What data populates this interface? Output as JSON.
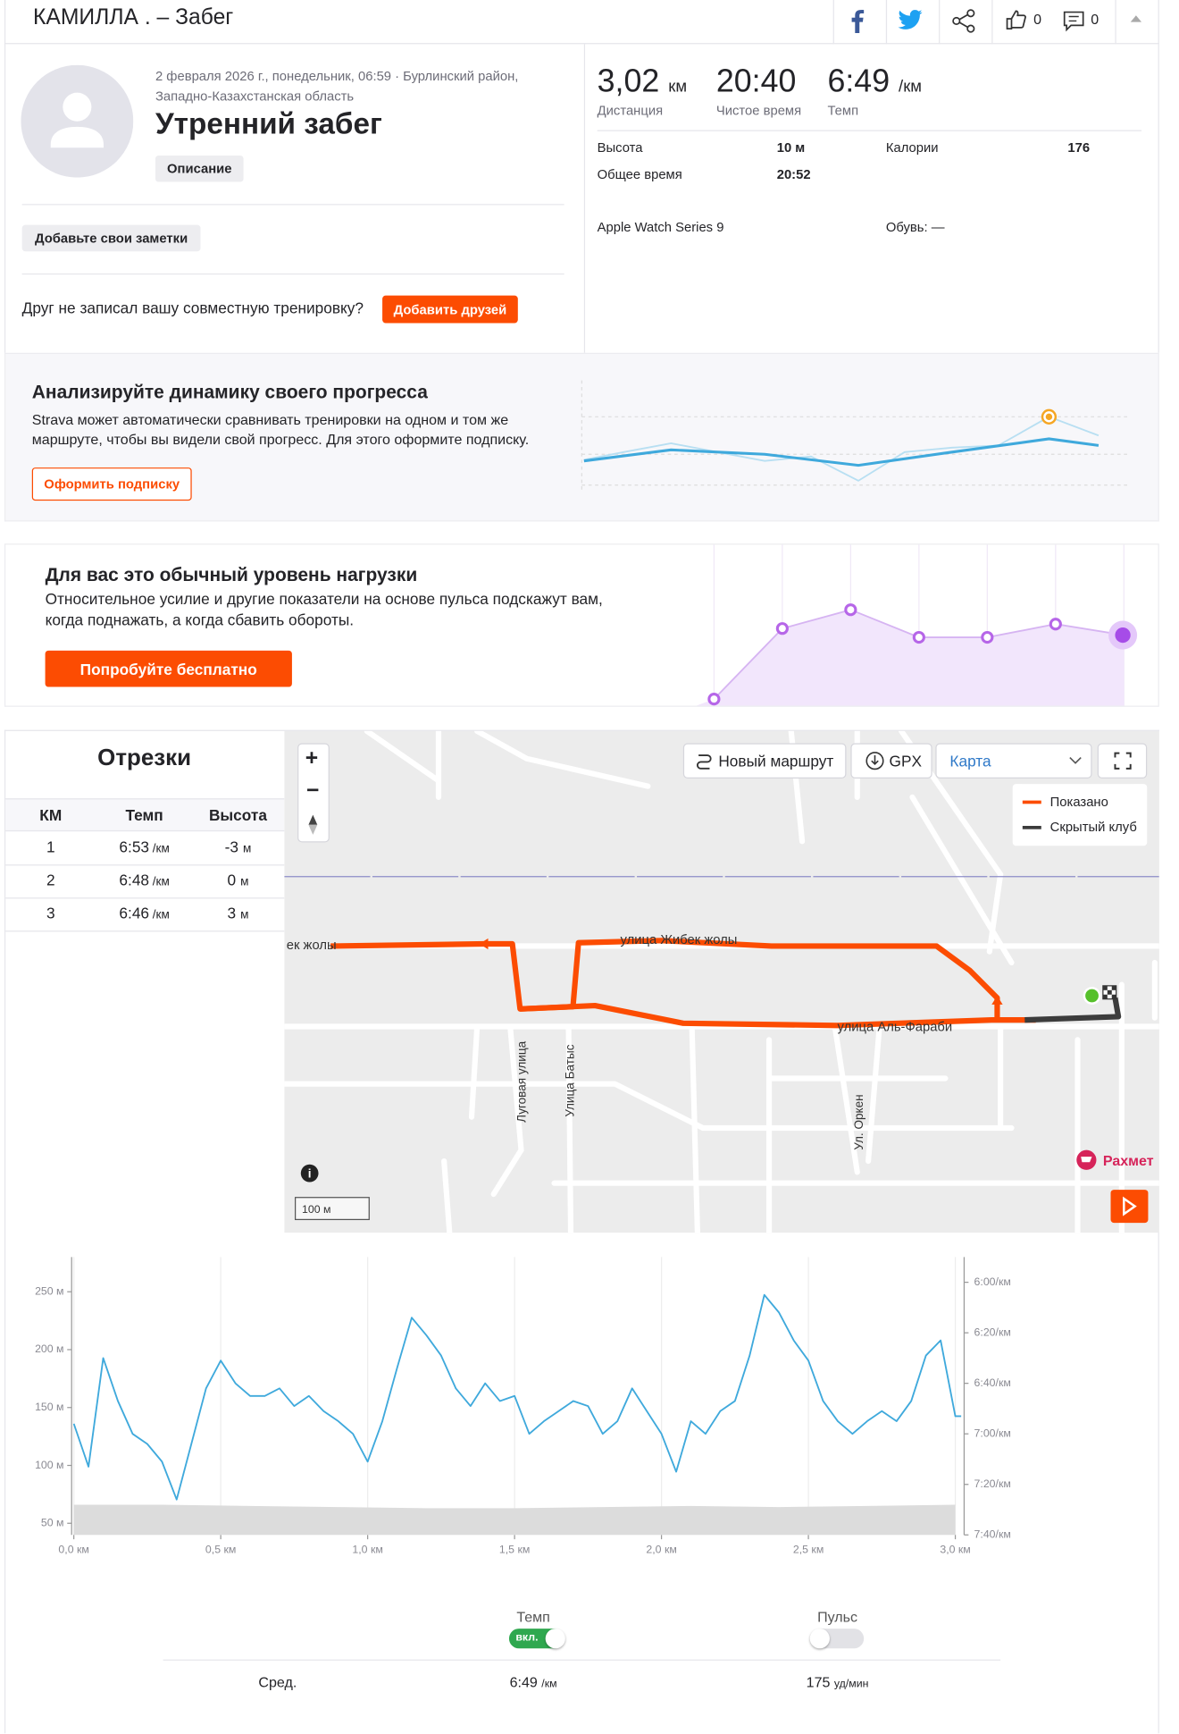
{
  "header": {
    "title": "КАМИЛЛА . – Забег",
    "kudos": 0,
    "comments": 0
  },
  "activity": {
    "meta_line1": "2 февраля 2026 г., понедельник, 06:59 · Бурлинский район,",
    "meta_line2": "Западно-Казахстанская область",
    "name": "Утренний забег",
    "description_button": "Описание",
    "notes_button": "Добавьте свои заметки",
    "friends_prompt": "Друг не записал вашу совместную тренировку?",
    "friends_button": "Добавить друзей"
  },
  "stats": {
    "primary": [
      {
        "value": "3,02",
        "unit": "км",
        "label": "Дистанция"
      },
      {
        "value": "20:40",
        "label": "Чистое время"
      },
      {
        "value": "6:49",
        "unit": "/км",
        "label": "Темп"
      }
    ],
    "secondary": [
      {
        "label": "Высота",
        "value": "10 м"
      },
      {
        "label": "Калории",
        "value": 176
      },
      {
        "label": "Общее время",
        "value": "20:52"
      }
    ],
    "device": "Apple Watch Series 9",
    "shoes": "Обувь: —"
  },
  "upsell_progress": {
    "title": "Анализируйте динамику своего прогресса",
    "text_line1": "Strava может автоматически сравнивать тренировки на одном и том же",
    "text_line2": "маршруте, чтобы вы видели свой прогресс. Для этого оформите подписку.",
    "button": "Оформить подписку"
  },
  "upsell_effort": {
    "title": "Для вас это обычный уровень нагрузки",
    "text_line1": "Относительное усилие и другие показатели на основе пульса подскажут вам,",
    "text_line2": "когда поднажать, а когда сбавить обороты.",
    "button": "Попробуйте бесплатно"
  },
  "segments": {
    "title": "Отрезки",
    "columns": [
      "КМ",
      "Темп",
      "Высота"
    ],
    "rows": [
      {
        "km": 1,
        "pace": "6:53",
        "pace_unit": "/км",
        "elevation": -3,
        "elevation_unit": "м"
      },
      {
        "km": 2,
        "pace": "6:48",
        "pace_unit": "/км",
        "elevation": 0,
        "elevation_unit": "м"
      },
      {
        "km": 3,
        "pace": "6:46",
        "pace_unit": "/км",
        "elevation": 3,
        "elevation_unit": "м"
      }
    ]
  },
  "map": {
    "route_button": "Новый маршрут",
    "gpx_button": "GPX",
    "map_type": "Карта",
    "legend": [
      "Показано",
      "Скрытый клуб"
    ],
    "streets": [
      "ек жолы",
      "улица Жибек жолы",
      "улица Аль-Фараби",
      "Луговая улица",
      "Улица Батыс",
      "Ул. Оркен"
    ],
    "poi": "Рахмет",
    "scale": "100 м"
  },
  "chart_data": {
    "type": "line",
    "xlim": [
      0,
      3.03
    ],
    "xticks": [
      {
        "value": 0,
        "label": "0,0 км"
      },
      {
        "value": 0.5,
        "label": "0,5 км"
      },
      {
        "value": 1.0,
        "label": "1,0 км"
      },
      {
        "value": 1.5,
        "label": "1,5 км"
      },
      {
        "value": 2.0,
        "label": "2,0 км"
      },
      {
        "value": 2.5,
        "label": "2,5 км"
      },
      {
        "value": 3.0,
        "label": "3,0 км"
      }
    ],
    "ylim": [
      40,
      280
    ],
    "yticks": [
      {
        "value": 50,
        "label": "50 м"
      },
      {
        "value": 100,
        "label": "100 м"
      },
      {
        "value": 150,
        "label": "150 м"
      },
      {
        "value": 200,
        "label": "200 м"
      },
      {
        "value": 250,
        "label": "250 м"
      }
    ],
    "y2lim": [
      460,
      350
    ],
    "y2ticks": [
      {
        "value": 360,
        "label": "6:00/км"
      },
      {
        "value": 380,
        "label": "6:20/км"
      },
      {
        "value": 400,
        "label": "6:40/км"
      },
      {
        "value": 420,
        "label": "7:00/км"
      },
      {
        "value": 440,
        "label": "7:20/км"
      },
      {
        "value": 460,
        "label": "7:40/км"
      }
    ],
    "grid": "x",
    "series": [
      {
        "type": "area",
        "color": "#dcdcdc",
        "x": [
          0,
          0.3,
          0.6,
          0.9,
          1.2,
          1.5,
          1.8,
          2.1,
          2.4,
          2.7,
          3.0
        ],
        "values": [
          66,
          66,
          65,
          64,
          63,
          63,
          64,
          65,
          64,
          65,
          66
        ]
      },
      {
        "type": "line",
        "axis": "y2",
        "color": "#3fa9dc",
        "x": [
          0,
          0.05,
          0.1,
          0.15,
          0.2,
          0.25,
          0.3,
          0.35,
          0.4,
          0.45,
          0.5,
          0.55,
          0.6,
          0.65,
          0.7,
          0.75,
          0.8,
          0.85,
          0.9,
          0.95,
          1.0,
          1.05,
          1.1,
          1.15,
          1.2,
          1.25,
          1.3,
          1.35,
          1.4,
          1.45,
          1.5,
          1.55,
          1.6,
          1.65,
          1.7,
          1.75,
          1.8,
          1.85,
          1.9,
          1.95,
          2.0,
          2.05,
          2.1,
          2.15,
          2.2,
          2.25,
          2.3,
          2.35,
          2.4,
          2.45,
          2.5,
          2.55,
          2.6,
          2.65,
          2.7,
          2.75,
          2.8,
          2.85,
          2.9,
          2.95,
          3.0,
          3.02
        ],
        "values": [
          416,
          433,
          390,
          407,
          420,
          424,
          431,
          446,
          424,
          402,
          391,
          400,
          405,
          405,
          402,
          409,
          405,
          411,
          415,
          420,
          431,
          415,
          394,
          374,
          381,
          389,
          402,
          409,
          400,
          407,
          405,
          420,
          415,
          411,
          407,
          409,
          420,
          415,
          402,
          411,
          420,
          435,
          415,
          420,
          411,
          407,
          389,
          365,
          372,
          383,
          391,
          407,
          415,
          420,
          415,
          411,
          415,
          407,
          389,
          383,
          413,
          413
        ]
      }
    ]
  },
  "footer_stats": {
    "toggles": [
      {
        "label": "Темп",
        "state": "вкл."
      },
      {
        "label": "Пульс"
      }
    ],
    "avg_label": "Сред.",
    "avg_pace": "6:49",
    "avg_pace_unit": "/км",
    "avg_hr": 175,
    "avg_hr_unit": "уд/мин"
  }
}
